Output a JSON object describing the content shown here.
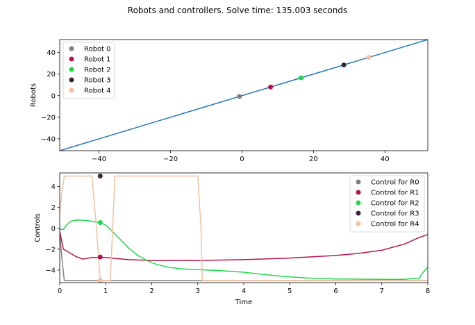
{
  "figure": {
    "title": "Robots and controllers. Solve time: 135.003 seconds"
  },
  "chart_data": [
    {
      "type": "scatter",
      "panel": "robots",
      "xlabel": "",
      "ylabel": "Robots",
      "xlim": [
        -51,
        52
      ],
      "ylim": [
        -51,
        52
      ],
      "xticks": [
        -40,
        -20,
        0,
        20,
        40
      ],
      "yticks": [
        -40,
        -20,
        0,
        20,
        40
      ],
      "grid": false,
      "legend_position": "upper-left",
      "line": {
        "x": [
          -51,
          52
        ],
        "y": [
          -51,
          52
        ],
        "color": "#1f77b4"
      },
      "series": [
        {
          "name": "Robot 0",
          "color": "#808080",
          "x": [
            -0.7
          ],
          "y": [
            -0.7
          ]
        },
        {
          "name": "Robot 1",
          "color": "#b5154b",
          "x": [
            8
          ],
          "y": [
            8
          ]
        },
        {
          "name": "Robot 2",
          "color": "#1fd84b",
          "x": [
            16.5
          ],
          "y": [
            16.5
          ]
        },
        {
          "name": "Robot 3",
          "color": "#3a2535",
          "x": [
            28.5
          ],
          "y": [
            28.5
          ]
        },
        {
          "name": "Robot 4",
          "color": "#f5c0a0",
          "x": [
            35.5
          ],
          "y": [
            35.5
          ]
        }
      ]
    },
    {
      "type": "line",
      "panel": "controls",
      "xlabel": "Time",
      "ylabel": "Controls",
      "xlim": [
        0,
        8
      ],
      "ylim": [
        -5.2,
        5.3
      ],
      "xticks": [
        0,
        1,
        2,
        3,
        4,
        5,
        6,
        7,
        8
      ],
      "yticks": [
        -4,
        -2,
        0,
        2,
        4
      ],
      "grid": false,
      "legend_position": "upper-right",
      "series": [
        {
          "name": "Control for R0",
          "color": "#808080",
          "x": [
            0,
            0.05,
            0.1,
            0.5,
            1,
            2,
            3,
            4,
            5,
            6,
            7,
            8
          ],
          "y": [
            -0.3,
            -3,
            -5,
            -5,
            -5,
            -5,
            -5,
            -5,
            -5,
            -5,
            -5,
            -5
          ],
          "marker": {
            "x": 0.88,
            "y": -5
          }
        },
        {
          "name": "Control for R1",
          "color": "#b5154b",
          "x": [
            0,
            0.08,
            0.2,
            0.35,
            0.5,
            0.7,
            1.0,
            1.5,
            2.0,
            3.0,
            4.0,
            5.0,
            6.0,
            6.5,
            7.0,
            7.5,
            7.8,
            8.0
          ],
          "y": [
            -0.3,
            -2.0,
            -2.3,
            -2.7,
            -2.95,
            -2.8,
            -2.8,
            -3.0,
            -3.08,
            -3.08,
            -3.0,
            -2.85,
            -2.6,
            -2.4,
            -2.1,
            -1.5,
            -0.9,
            -0.6
          ],
          "marker": {
            "x": 0.88,
            "y": -2.75
          }
        },
        {
          "name": "Control for R2",
          "color": "#1fd84b",
          "x": [
            0,
            0.08,
            0.15,
            0.25,
            0.4,
            0.6,
            0.8,
            0.88,
            1.0,
            1.1,
            1.3,
            1.5,
            1.7,
            1.9,
            2.1,
            2.4,
            2.7,
            3.0,
            3.5,
            4.0,
            4.5,
            5.0,
            5.5,
            6.0,
            6.5,
            7.0,
            7.5,
            7.7,
            7.8,
            7.9,
            8.0
          ],
          "y": [
            -0.1,
            -0.1,
            0.3,
            0.7,
            0.8,
            0.75,
            0.6,
            0.55,
            0.3,
            -0.1,
            -1.0,
            -1.9,
            -2.6,
            -3.1,
            -3.45,
            -3.75,
            -3.9,
            -3.95,
            -4.05,
            -4.2,
            -4.45,
            -4.65,
            -4.78,
            -4.85,
            -4.87,
            -4.88,
            -4.88,
            -4.8,
            -4.85,
            -4.2,
            -3.7
          ],
          "marker": {
            "x": 0.88,
            "y": 0.55
          }
        },
        {
          "name": "Control for R3",
          "color": "#3a2535",
          "x": [
            0.88
          ],
          "y": [
            5
          ],
          "marker": {
            "x": 0.88,
            "y": 5
          }
        },
        {
          "name": "Control for R4",
          "color": "#f5c0a0",
          "x": [
            0,
            0.05,
            0.1,
            0.7,
            0.8,
            0.88,
            1.1,
            1.2,
            3.0,
            3.07,
            3.1,
            8.0
          ],
          "y": [
            1.5,
            3.5,
            5.0,
            5.0,
            0.0,
            -5.0,
            -5.0,
            5.0,
            5.0,
            0.0,
            -5.0,
            -5.0
          ],
          "marker": {
            "x": 0.88,
            "y": -5
          }
        }
      ]
    }
  ]
}
